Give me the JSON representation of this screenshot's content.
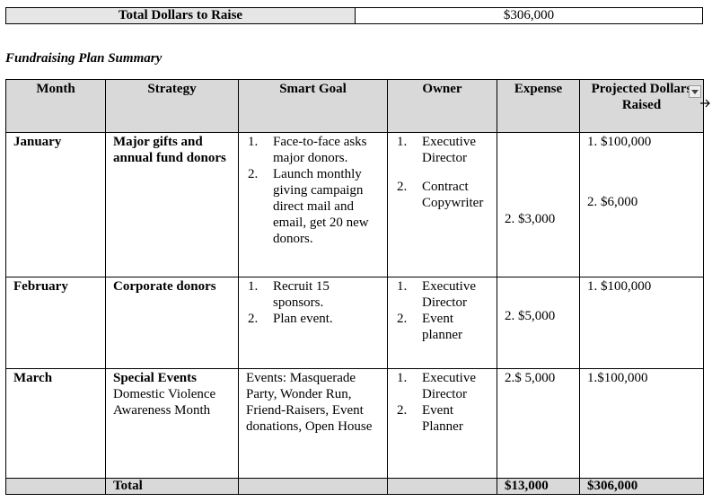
{
  "summary": {
    "label": "Total Dollars to Raise",
    "value": "$306,000"
  },
  "title": "Fundraising Plan Summary",
  "table": {
    "headers": [
      "Month",
      "Strategy",
      "Smart Goal",
      "Owner",
      "Expense",
      "Projected Dollars Raised"
    ],
    "rows": [
      {
        "month": "January",
        "strategy": {
          "title": "Major gifts and annual fund donors"
        },
        "goals": [
          {
            "marker": "1.",
            "text": "Face-to-face asks major donors."
          },
          {
            "marker": "2.",
            "text": "Launch monthly giving campaign direct mail and email, get 20 new donors."
          }
        ],
        "owners": [
          {
            "marker": "1.",
            "text": "Executive Director"
          },
          {
            "marker": "2.",
            "text": "Contract Copywriter"
          }
        ],
        "expense": [
          "2. $3,000"
        ],
        "projected": [
          "1. $100,000",
          "2. $6,000"
        ]
      },
      {
        "month": "February",
        "strategy": {
          "title": "Corporate donors"
        },
        "goals": [
          {
            "marker": "1.",
            "text": "Recruit 15 sponsors."
          },
          {
            "marker": "2.",
            "text": "Plan event."
          }
        ],
        "owners": [
          {
            "marker": "1.",
            "text": "Executive Director"
          },
          {
            "marker": "2.",
            "text": "Event planner"
          }
        ],
        "expense": [
          "2. $5,000"
        ],
        "projected": [
          "1. $100,000"
        ]
      },
      {
        "month": "March",
        "strategy": {
          "title": "Special Events",
          "detail": "Domestic Violence Awareness Month"
        },
        "goal_text": "Events: Masquerade Party, Wonder Run, Friend-Raisers, Event donations, Open House",
        "owners": [
          {
            "marker": "1.",
            "text": "Executive Director"
          },
          {
            "marker": "2.",
            "text": "Event Planner"
          }
        ],
        "expense": [
          "2.$ 5,000"
        ],
        "projected": [
          "1.$100,000"
        ]
      }
    ],
    "total": {
      "label": "Total",
      "expense": "$13,000",
      "projected": "$306,000"
    }
  }
}
